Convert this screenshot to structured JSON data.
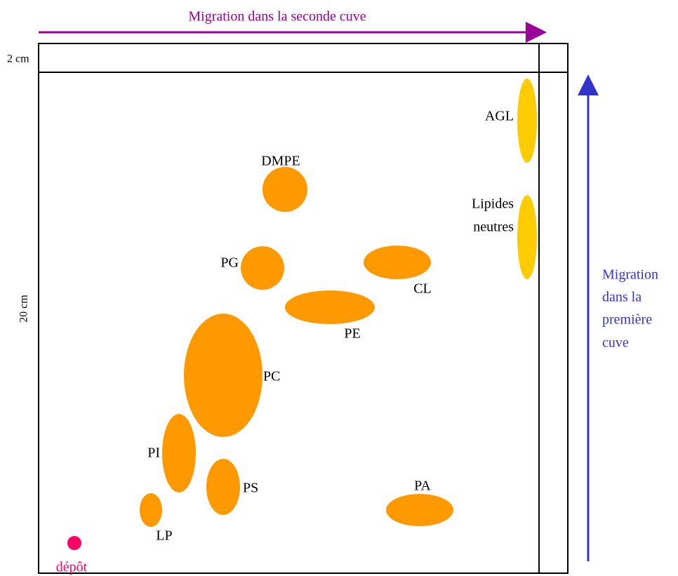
{
  "top_arrow": {
    "label": "Migration dans la seconde cuve"
  },
  "scale": {
    "top": "2 cm",
    "side": "20 cm"
  },
  "right_arrow": {
    "lines": [
      "Migration",
      "dans la",
      "première",
      "cuve"
    ]
  },
  "spots": {
    "agl": "AGL",
    "neutral_lipids": [
      "Lipides",
      "neutres"
    ],
    "dmpe": "DMPE",
    "pg": "PG",
    "cl": "CL",
    "pe": "PE",
    "pc": "PC",
    "pi": "PI",
    "ps": "PS",
    "pa": "PA",
    "lp": "LP"
  },
  "origin": "dépôt"
}
